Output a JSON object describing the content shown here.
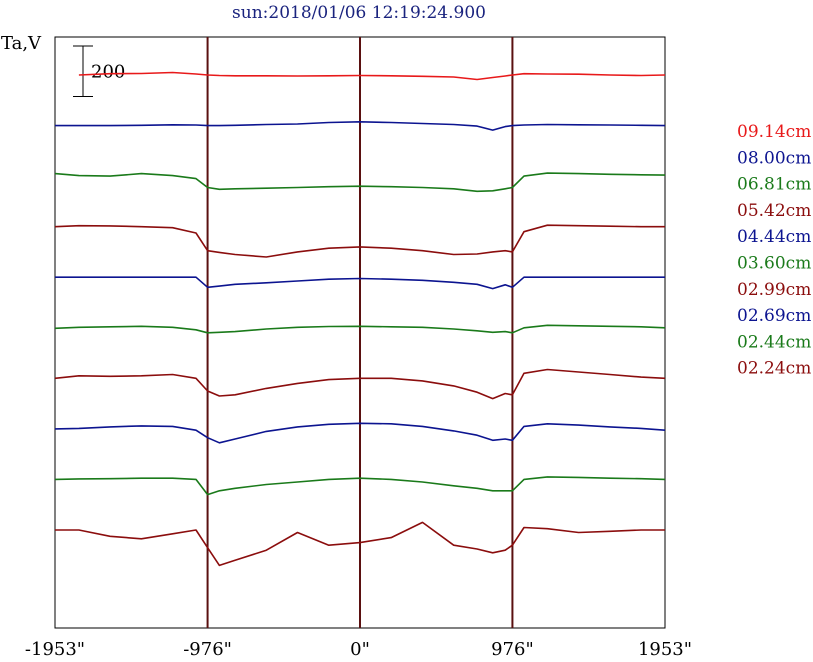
{
  "chart_data": {
    "type": "line",
    "title": "sun:2018/01/06 12:19:24.900",
    "ylabel": "Ta,V",
    "xlim": [
      -1953,
      1953
    ],
    "x_ticks": [
      {
        "value": -1953,
        "label": "-1953\""
      },
      {
        "value": -976,
        "label": "-976\""
      },
      {
        "value": 0,
        "label": "0\""
      },
      {
        "value": 976,
        "label": "976\""
      },
      {
        "value": 1953,
        "label": "1953\""
      }
    ],
    "vertical_lines": [
      -976,
      0,
      976
    ],
    "scale_bar": {
      "label": "200",
      "value": 200
    },
    "x": [
      -1953,
      -1800,
      -1600,
      -1400,
      -1200,
      -1050,
      -976,
      -900,
      -800,
      -600,
      -400,
      -200,
      0,
      200,
      400,
      600,
      750,
      850,
      930,
      976,
      1050,
      1200,
      1400,
      1600,
      1800,
      1953
    ],
    "series": [
      {
        "name": "09.14cm",
        "color": "#e8191a",
        "offset": 2200,
        "values": [
          null,
          0,
          5,
          6,
          10,
          4,
          0,
          -2,
          -3,
          -3,
          -4,
          -3,
          -2,
          -3,
          -5,
          -8,
          -18,
          -10,
          -4,
          0,
          5,
          4,
          3,
          0,
          -2,
          0
        ]
      },
      {
        "name": "08.00cm",
        "color": "#0c1490",
        "offset": 2000,
        "values": [
          0,
          0,
          0,
          1,
          3,
          2,
          0,
          0,
          1,
          4,
          6,
          12,
          15,
          12,
          8,
          4,
          -2,
          -18,
          -4,
          0,
          2,
          4,
          3,
          2,
          1,
          0
        ]
      },
      {
        "name": "06.81cm",
        "color": "#1a7a1a",
        "offset": 1800,
        "values": [
          10,
          2,
          0,
          10,
          2,
          -10,
          -45,
          -52,
          -50,
          -48,
          -45,
          -42,
          -40,
          -42,
          -45,
          -50,
          -60,
          -58,
          -50,
          -45,
          0,
          12,
          10,
          7,
          5,
          4
        ]
      },
      {
        "name": "05.42cm",
        "color": "#8b0d0d",
        "offset": 1600,
        "values": [
          0,
          4,
          3,
          0,
          -4,
          -25,
          -95,
          -102,
          -110,
          -120,
          -100,
          -85,
          -80,
          -85,
          -95,
          -110,
          -108,
          -100,
          -95,
          -100,
          -20,
          6,
          4,
          2,
          0,
          0
        ]
      },
      {
        "name": "04.44cm",
        "color": "#0c1490",
        "offset": 1400,
        "values": [
          0,
          0,
          0,
          0,
          0,
          0,
          -40,
          -35,
          -28,
          -22,
          -15,
          -8,
          -5,
          -8,
          -12,
          -20,
          -28,
          -45,
          -30,
          -40,
          0,
          0,
          0,
          0,
          0,
          0
        ]
      },
      {
        "name": "03.60cm",
        "color": "#1a7a1a",
        "offset": 1200,
        "values": [
          -2,
          2,
          4,
          6,
          2,
          -8,
          -20,
          -18,
          -15,
          -5,
          2,
          5,
          6,
          4,
          2,
          -5,
          -12,
          -18,
          -15,
          -20,
          0,
          10,
          8,
          6,
          4,
          0
        ]
      },
      {
        "name": "02.99cm",
        "color": "#8b0d0d",
        "offset": 1000,
        "values": [
          0,
          10,
          8,
          10,
          15,
          0,
          -50,
          -70,
          -65,
          -40,
          -20,
          -5,
          0,
          0,
          -10,
          -30,
          -55,
          -80,
          -60,
          -65,
          20,
          35,
          25,
          15,
          5,
          0
        ]
      },
      {
        "name": "02.69cm",
        "color": "#0c1490",
        "offset": 800,
        "values": [
          0,
          2,
          8,
          12,
          10,
          -5,
          -35,
          -55,
          -40,
          -10,
          8,
          18,
          22,
          20,
          10,
          -8,
          -25,
          -45,
          -40,
          -45,
          10,
          20,
          15,
          8,
          2,
          -5
        ]
      },
      {
        "name": "02.44cm",
        "color": "#1a7a1a",
        "offset": 600,
        "values": [
          0,
          2,
          3,
          5,
          5,
          0,
          -60,
          -45,
          -35,
          -20,
          -10,
          0,
          5,
          0,
          -10,
          -25,
          -35,
          -45,
          -45,
          -45,
          0,
          10,
          8,
          5,
          3,
          0
        ]
      },
      {
        "name": "02.24cm",
        "color": "#8b0d0d",
        "offset": 400,
        "values": [
          0,
          0,
          -25,
          -35,
          -15,
          0,
          -70,
          -140,
          -120,
          -80,
          -10,
          -60,
          -50,
          -30,
          30,
          -60,
          -75,
          -90,
          -80,
          -60,
          10,
          5,
          -10,
          -5,
          0,
          0
        ]
      }
    ]
  }
}
